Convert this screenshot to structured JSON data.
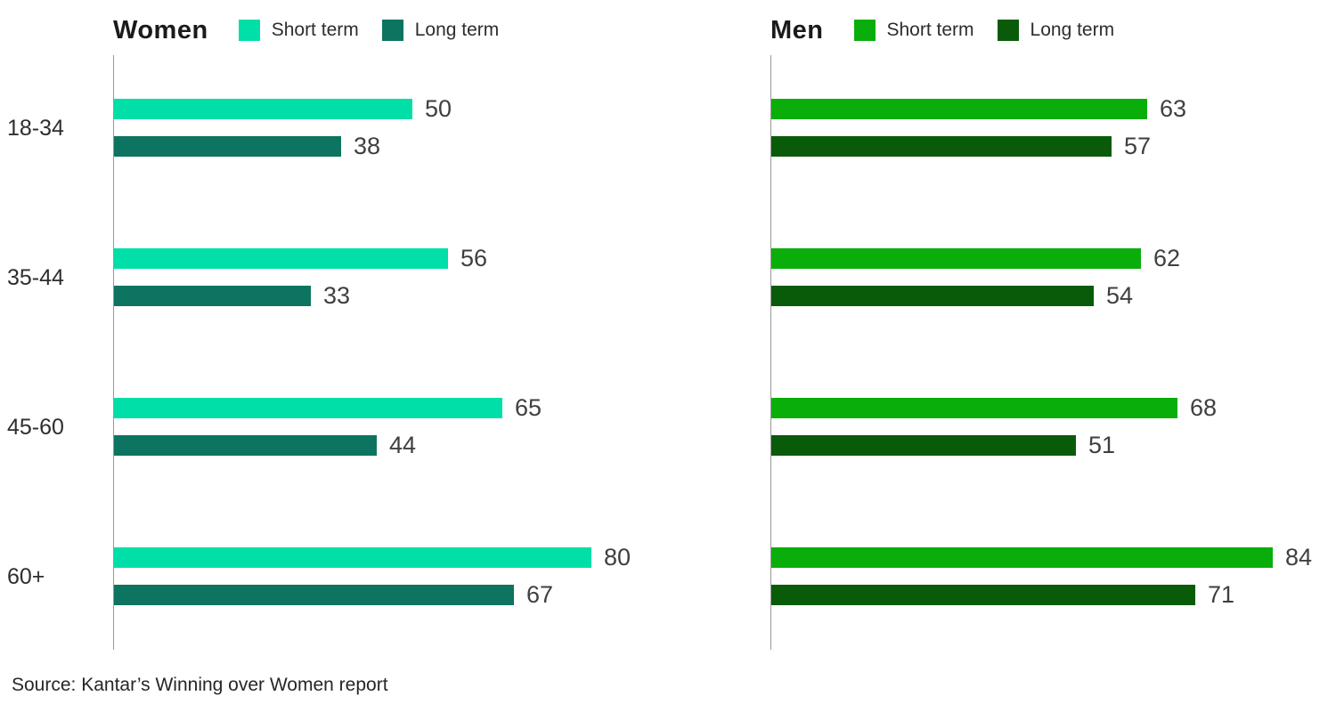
{
  "chart_data": {
    "type": "bar",
    "orientation": "horizontal",
    "categories": [
      "18-34",
      "35-44",
      "45-60",
      "60+"
    ],
    "xlim": [
      0,
      100
    ],
    "grid": false,
    "legend_position": "top",
    "axis_color": "#999999",
    "panels": [
      {
        "title": "Women",
        "series": [
          {
            "name": "Short term",
            "color": "#00DFA8",
            "values": [
              50,
              56,
              65,
              80
            ]
          },
          {
            "name": "Long term",
            "color": "#0C7460",
            "values": [
              38,
              33,
              44,
              67
            ]
          }
        ]
      },
      {
        "title": "Men",
        "series": [
          {
            "name": "Short term",
            "color": "#0AAE0A",
            "values": [
              63,
              62,
              68,
              84
            ]
          },
          {
            "name": "Long term",
            "color": "#095B09",
            "values": [
              57,
              54,
              51,
              71
            ]
          }
        ]
      }
    ],
    "source": "Source: Kantar’s Winning over Women report"
  }
}
